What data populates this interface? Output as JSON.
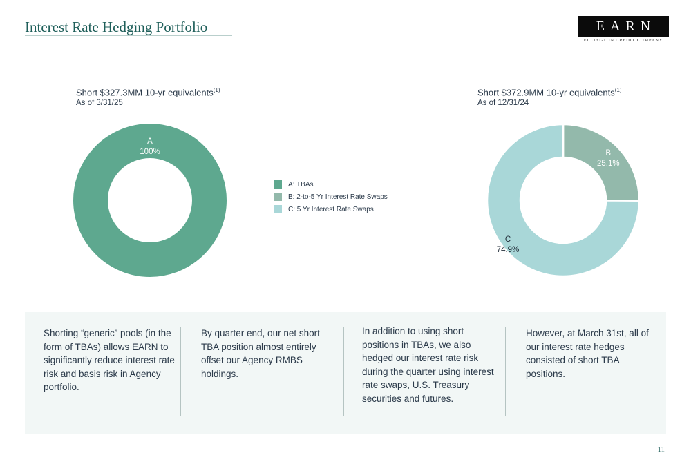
{
  "page": {
    "title": "Interest Rate Hedging Portfolio",
    "page_number": "11"
  },
  "logo": {
    "name": "EARN",
    "tagline": "ELLINGTON CREDIT COMPANY"
  },
  "colors": {
    "title": "#1f5f5a",
    "tbas": "#5ea88f",
    "swaps_2_5": "#93b9ab",
    "swaps_5": "#a9d7d8",
    "panel_bg": "#f2f7f6"
  },
  "legend": [
    {
      "label": "A: TBAs",
      "color": "#5ea88f"
    },
    {
      "label": "B: 2-to-5 Yr Interest Rate Swaps",
      "color": "#93b9ab"
    },
    {
      "label": "C: 5 Yr Interest Rate Swaps",
      "color": "#a9d7d8"
    }
  ],
  "chart_data": [
    {
      "type": "pie",
      "title": "Short $327.3MM 10-yr equivalents",
      "title_sup": "(1)",
      "subtitle": "As of 3/31/25",
      "slices": [
        {
          "label": "A",
          "value": 100,
          "display": "100%",
          "color": "#5ea88f"
        }
      ]
    },
    {
      "type": "pie",
      "title": "Short $372.9MM 10-yr equivalents",
      "title_sup": "(1)",
      "subtitle": "As of 12/31/24",
      "slices": [
        {
          "label": "B",
          "value": 25.1,
          "display": "25.1%",
          "color": "#93b9ab"
        },
        {
          "label": "C",
          "value": 74.9,
          "display": "74.9%",
          "color": "#a9d7d8"
        }
      ]
    }
  ],
  "panel": {
    "columns": [
      "Shorting “generic” pools (in the form of TBAs) allows EARN to significantly reduce interest rate risk and basis risk in Agency portfolio.",
      "By quarter end, our net short TBA position almost entirely offset our Agency RMBS holdings.",
      "In addition to using short positions in TBAs, we also hedged our interest rate risk during the quarter using interest rate swaps, U.S. Treasury securities and futures.",
      "However, at March 31st, all of our interest rate hedges consisted of short TBA positions."
    ]
  }
}
